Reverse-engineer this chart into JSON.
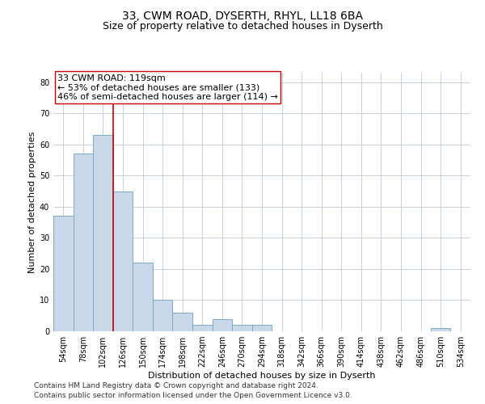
{
  "title1": "33, CWM ROAD, DYSERTH, RHYL, LL18 6BA",
  "title2": "Size of property relative to detached houses in Dyserth",
  "xlabel": "Distribution of detached houses by size in Dyserth",
  "ylabel": "Number of detached properties",
  "bar_labels": [
    "54sqm",
    "78sqm",
    "102sqm",
    "126sqm",
    "150sqm",
    "174sqm",
    "198sqm",
    "222sqm",
    "246sqm",
    "270sqm",
    "294sqm",
    "318sqm",
    "342sqm",
    "366sqm",
    "390sqm",
    "414sqm",
    "438sqm",
    "462sqm",
    "486sqm",
    "510sqm",
    "534sqm"
  ],
  "bar_values": [
    37,
    57,
    63,
    45,
    22,
    10,
    6,
    2,
    4,
    2,
    2,
    0,
    0,
    0,
    0,
    0,
    0,
    0,
    0,
    1,
    0
  ],
  "bar_color": "#c8d8e8",
  "bar_edge_color": "#7aaaca",
  "vline_x": 2.5,
  "vline_color": "#cc0000",
  "annotation_text": "33 CWM ROAD: 119sqm\n← 53% of detached houses are smaller (133)\n46% of semi-detached houses are larger (114) →",
  "annotation_box_color": "white",
  "annotation_box_edge": "#cc0000",
  "ylim": [
    0,
    83
  ],
  "yticks": [
    0,
    10,
    20,
    30,
    40,
    50,
    60,
    70,
    80
  ],
  "grid_color": "#c8d0dc",
  "footer1": "Contains HM Land Registry data © Crown copyright and database right 2024.",
  "footer2": "Contains public sector information licensed under the Open Government Licence v3.0.",
  "title1_fontsize": 10,
  "title2_fontsize": 9,
  "axis_label_fontsize": 8,
  "tick_fontsize": 7,
  "footer_fontsize": 6.5,
  "annotation_fontsize": 8
}
